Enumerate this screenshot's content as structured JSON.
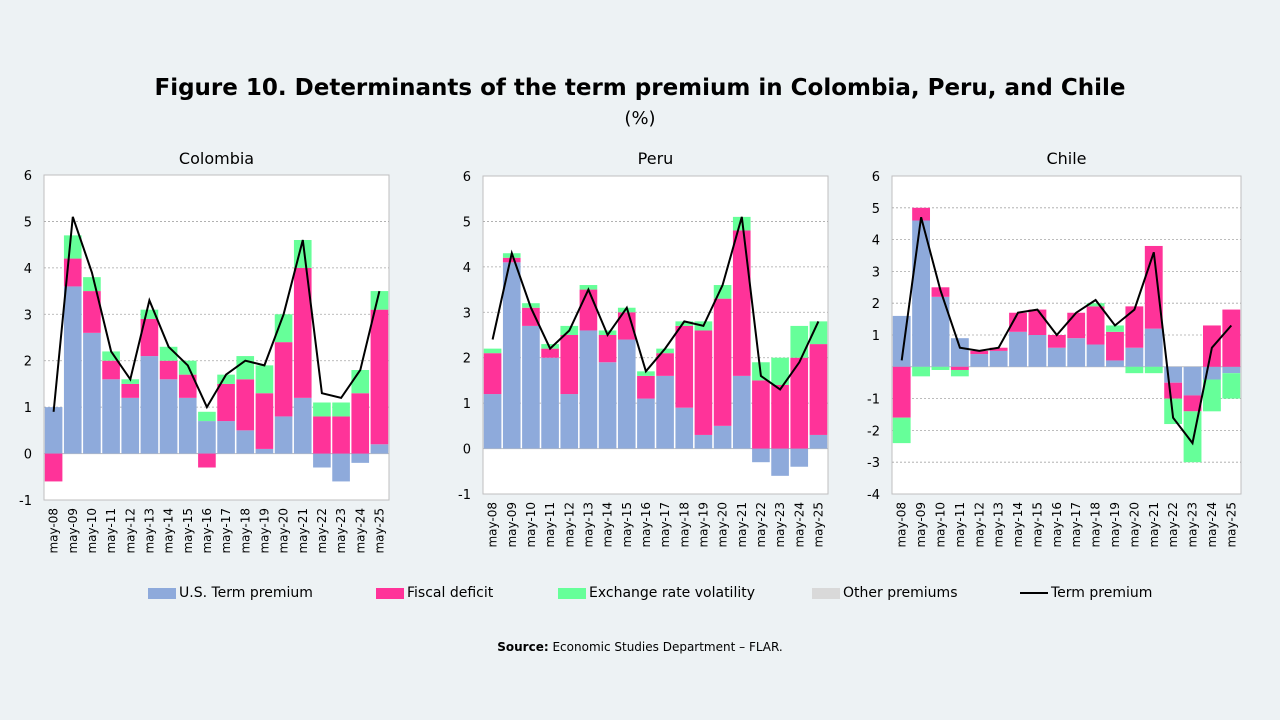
{
  "title": "Figure 10. Determinants of the term premium in Colombia, Peru, and Chile",
  "subtitle": "(%)",
  "legend": {
    "us": "U.S. Term premium",
    "fiscal": "Fiscal deficit",
    "fx": "Exchange rate volatility",
    "other": "Other premiums",
    "term": "Term premium"
  },
  "colors": {
    "us": "#8eaadb",
    "fiscal": "#ff3399",
    "fx": "#66ff99",
    "other": "#d9d9d9",
    "term": "#000000"
  },
  "source_label": "Source:",
  "source_text": "Economic Studies Department – FLAR.",
  "chart_data": [
    {
      "type": "area",
      "title": "Colombia",
      "x": [
        "may-08",
        "may-09",
        "may-10",
        "may-11",
        "may-12",
        "may-13",
        "may-14",
        "may-15",
        "may-16",
        "may-17",
        "may-18",
        "may-19",
        "may-20",
        "may-21",
        "may-22",
        "may-23",
        "may-24",
        "may-25"
      ],
      "ylim": [
        -1,
        6
      ],
      "yticks": [
        -1,
        0,
        1,
        2,
        3,
        4,
        5,
        6
      ],
      "series": [
        {
          "name": "U.S. Term premium",
          "values": [
            1.0,
            3.6,
            2.6,
            1.6,
            1.2,
            2.1,
            1.6,
            1.2,
            0.7,
            0.7,
            0.5,
            0.1,
            0.8,
            1.2,
            -0.3,
            -0.6,
            -0.2,
            0.2
          ]
        },
        {
          "name": "Fiscal deficit",
          "values": [
            -0.6,
            0.6,
            0.9,
            0.4,
            0.3,
            0.8,
            0.4,
            0.5,
            -0.3,
            0.8,
            1.1,
            1.2,
            1.6,
            2.8,
            0.8,
            0.8,
            1.3,
            2.9
          ]
        },
        {
          "name": "Exchange rate volatility",
          "values": [
            0.0,
            0.5,
            0.3,
            0.2,
            0.1,
            0.2,
            0.3,
            0.3,
            0.2,
            0.2,
            0.5,
            0.6,
            0.6,
            0.6,
            0.3,
            0.3,
            0.5,
            0.4
          ]
        },
        {
          "name": "Other premiums",
          "values": [
            0,
            0,
            0,
            0,
            0,
            0,
            0,
            0,
            0,
            0,
            0,
            0,
            0,
            0,
            0,
            0,
            0,
            0
          ]
        },
        {
          "name": "Term premium",
          "values": [
            0.9,
            5.1,
            3.9,
            2.2,
            1.6,
            3.3,
            2.3,
            1.9,
            1.0,
            1.7,
            2.0,
            1.9,
            3.0,
            4.6,
            1.3,
            1.2,
            1.8,
            3.5
          ]
        }
      ]
    },
    {
      "type": "area",
      "title": "Peru",
      "x": [
        "may-08",
        "may-09",
        "may-10",
        "may-11",
        "may-12",
        "may-13",
        "may-14",
        "may-15",
        "may-16",
        "may-17",
        "may-18",
        "may-19",
        "may-20",
        "may-21",
        "may-22",
        "may-23",
        "may-24",
        "may-25"
      ],
      "ylim": [
        -1,
        6
      ],
      "yticks": [
        -1,
        0,
        1,
        2,
        3,
        4,
        5,
        6
      ],
      "series": [
        {
          "name": "U.S. Term premium",
          "values": [
            1.2,
            4.1,
            2.7,
            2.0,
            1.2,
            2.6,
            1.9,
            2.4,
            1.1,
            1.6,
            0.9,
            0.3,
            0.5,
            1.6,
            -0.3,
            -0.6,
            -0.4,
            0.3
          ]
        },
        {
          "name": "Fiscal deficit",
          "values": [
            0.9,
            0.1,
            0.4,
            0.2,
            1.3,
            0.9,
            0.6,
            0.6,
            0.5,
            0.5,
            1.8,
            2.3,
            2.8,
            3.2,
            1.5,
            1.4,
            2.0,
            2.0
          ]
        },
        {
          "name": "Exchange rate volatility",
          "values": [
            0.1,
            0.1,
            0.1,
            0.1,
            0.2,
            0.1,
            0.1,
            0.1,
            0.1,
            0.1,
            0.1,
            0.2,
            0.3,
            0.3,
            0.4,
            0.6,
            0.7,
            0.5
          ]
        },
        {
          "name": "Other premiums",
          "values": [
            0,
            0,
            0,
            0,
            0,
            0,
            0,
            0,
            0,
            0,
            0,
            0,
            0,
            0,
            0,
            0,
            0,
            0
          ]
        },
        {
          "name": "Term premium",
          "values": [
            2.4,
            4.3,
            3.1,
            2.2,
            2.6,
            3.5,
            2.5,
            3.1,
            1.7,
            2.2,
            2.8,
            2.7,
            3.6,
            5.1,
            1.6,
            1.3,
            1.9,
            2.8
          ]
        }
      ]
    },
    {
      "type": "area",
      "title": "Chile",
      "x": [
        "may-08",
        "may-09",
        "may-10",
        "may-11",
        "may-12",
        "may-13",
        "may-14",
        "may-15",
        "may-16",
        "may-17",
        "may-18",
        "may-19",
        "may-20",
        "may-21",
        "may-22",
        "may-23",
        "may-24",
        "may-25"
      ],
      "ylim": [
        -4,
        6
      ],
      "yticks": [
        -4,
        -3,
        -2,
        -1,
        1,
        2,
        3,
        4,
        5,
        6
      ],
      "series": [
        {
          "name": "U.S. Term premium",
          "values": [
            1.6,
            4.6,
            2.2,
            0.9,
            0.4,
            0.5,
            1.1,
            1.0,
            0.6,
            0.9,
            0.7,
            0.2,
            0.6,
            1.2,
            -0.5,
            -0.9,
            -0.4,
            -0.2
          ]
        },
        {
          "name": "Fiscal deficit",
          "values": [
            -1.6,
            0.4,
            0.3,
            -0.1,
            0.1,
            0.1,
            0.6,
            0.8,
            0.4,
            0.8,
            1.2,
            0.9,
            1.3,
            2.6,
            -0.5,
            -0.5,
            1.3,
            1.8
          ]
        },
        {
          "name": "Exchange rate volatility",
          "values": [
            -0.8,
            -0.3,
            -0.1,
            -0.2,
            0.0,
            0.0,
            0.0,
            0.0,
            0.0,
            0.0,
            0.1,
            0.2,
            -0.2,
            -0.2,
            -0.8,
            -1.6,
            -1.0,
            -0.8
          ]
        },
        {
          "name": "Other premiums",
          "values": [
            0,
            0,
            0,
            0,
            0,
            0,
            0,
            0,
            0,
            0,
            0,
            0,
            0,
            0,
            0,
            0,
            0,
            0
          ]
        },
        {
          "name": "Term premium",
          "values": [
            0.2,
            4.7,
            2.4,
            0.6,
            0.5,
            0.6,
            1.7,
            1.8,
            1.0,
            1.7,
            2.1,
            1.3,
            1.8,
            3.6,
            -1.6,
            -2.4,
            0.6,
            1.3
          ]
        }
      ]
    }
  ]
}
